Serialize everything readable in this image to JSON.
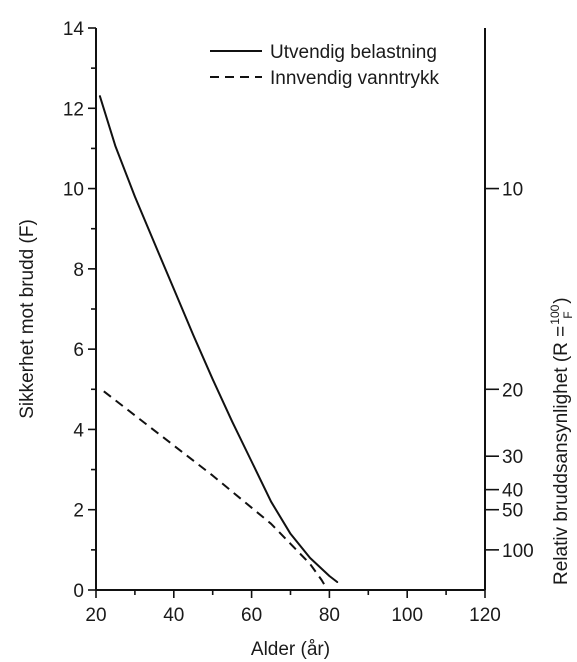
{
  "chart_data": {
    "type": "line",
    "xlabel": "Alder (år)",
    "ylabel": "Sikkerhet mot brudd (F)",
    "y2label_main": "Relativ bruddsansynlighet (R = ",
    "y2label_frac_num": "100",
    "y2label_frac_den": "F",
    "y2label_close": ")",
    "xlim": [
      20,
      120
    ],
    "ylim": [
      0,
      14
    ],
    "x_ticks": [
      20,
      40,
      60,
      80,
      100,
      120
    ],
    "y_ticks": [
      0,
      2,
      4,
      6,
      8,
      10,
      12,
      14
    ],
    "y2_ticks": [
      {
        "label": "10",
        "F": 10
      },
      {
        "label": "20",
        "F": 5
      },
      {
        "label": "30",
        "F": 3.333
      },
      {
        "label": "40",
        "F": 2.5
      },
      {
        "label": "50",
        "F": 2
      },
      {
        "label": "100",
        "F": 1
      }
    ],
    "legend_position": "top-right",
    "series": [
      {
        "name": "Utvendig belastning",
        "style": "solid",
        "x": [
          21,
          25,
          30,
          35,
          40,
          45,
          50,
          55,
          60,
          65,
          70,
          75,
          80,
          82
        ],
        "y": [
          12.3,
          11.05,
          9.8,
          8.65,
          7.5,
          6.35,
          5.25,
          4.2,
          3.2,
          2.2,
          1.4,
          0.8,
          0.35,
          0.2
        ]
      },
      {
        "name": "Innvendig vanntrykk",
        "style": "dashed",
        "x": [
          22,
          30,
          40,
          50,
          55,
          60,
          65,
          70,
          75,
          78,
          79.5
        ],
        "y": [
          4.95,
          4.35,
          3.6,
          2.85,
          2.45,
          2.05,
          1.65,
          1.15,
          0.65,
          0.25,
          0
        ]
      }
    ]
  }
}
